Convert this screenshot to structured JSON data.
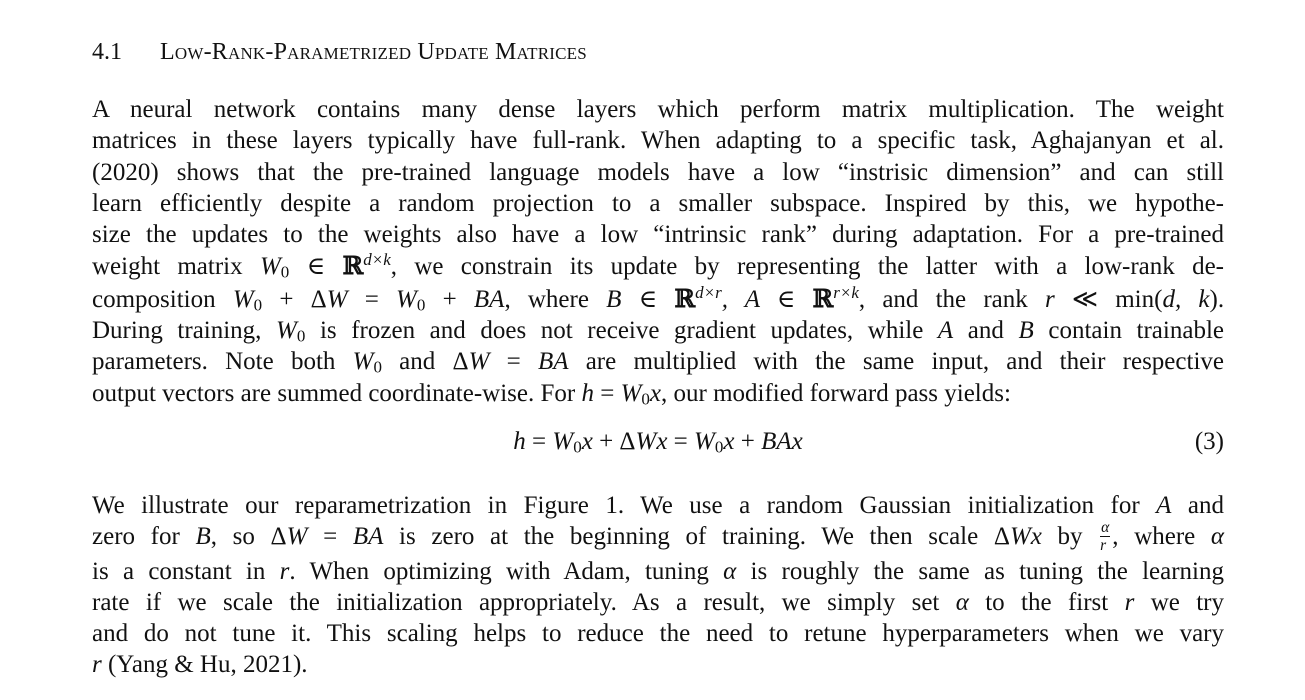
{
  "section": {
    "number": "4.1",
    "title": "Low-Rank-Parametrized Update Matrices"
  },
  "paragraph1": {
    "lines": [
      "A neural network contains many dense layers which perform matrix multiplication.  The weight",
      "matrices in these layers typically have full-rank. When adapting to a specific task, Aghajanyan et al.",
      "(2020) shows that the pre-trained language models have a low “instrisic dimension” and can still",
      "learn efficiently despite a random projection to a smaller subspace.  Inspired by this, we hypothe-",
      "size the updates to the weights also have a low “intrinsic rank” during adaptation. For a pre-trained"
    ],
    "l6_a": "weight matrix ",
    "l6_b": ", we constrain its update by representing the latter with a low-rank de-",
    "l7_a": "composition ",
    "l7_b": ", where ",
    "l7_c": ", and the rank ",
    "l7_d": ".",
    "l8_a": "During training, ",
    "l8_b": " is frozen and does not receive gradient updates, while ",
    "l8_c": " and ",
    "l8_d": " contain trainable",
    "l9_a": "parameters. Note both ",
    "l9_b": " and ",
    "l9_c": " are multiplied with the same input, and their respective",
    "l10_a": "output vectors are summed coordinate-wise. For ",
    "l10_b": ", our modified forward pass yields:"
  },
  "equation": {
    "number": "(3)"
  },
  "paragraph2": {
    "l1_a": "We illustrate our reparametrization in Figure 1.  We use a random Gaussian initialization for ",
    "l1_b": " and",
    "l2_a": "zero for ",
    "l2_b": ", so ",
    "l2_c": " is zero at the beginning of training. We then scale ",
    "l2_d": " by ",
    "l2_e": ", where ",
    "l3_a": "is a constant in ",
    "l3_b": ". When optimizing with Adam, tuning ",
    "l3_c": " is roughly the same as tuning the learning",
    "l4_a": "rate if we scale the initialization appropriately.  As a result, we simply set ",
    "l4_b": " to the first ",
    "l4_c": " we try",
    "l5": "and do not tune it.  This scaling helps to reduce the need to retune hyperparameters when we vary",
    "l6_b": " (Yang & Hu, 2021)."
  }
}
